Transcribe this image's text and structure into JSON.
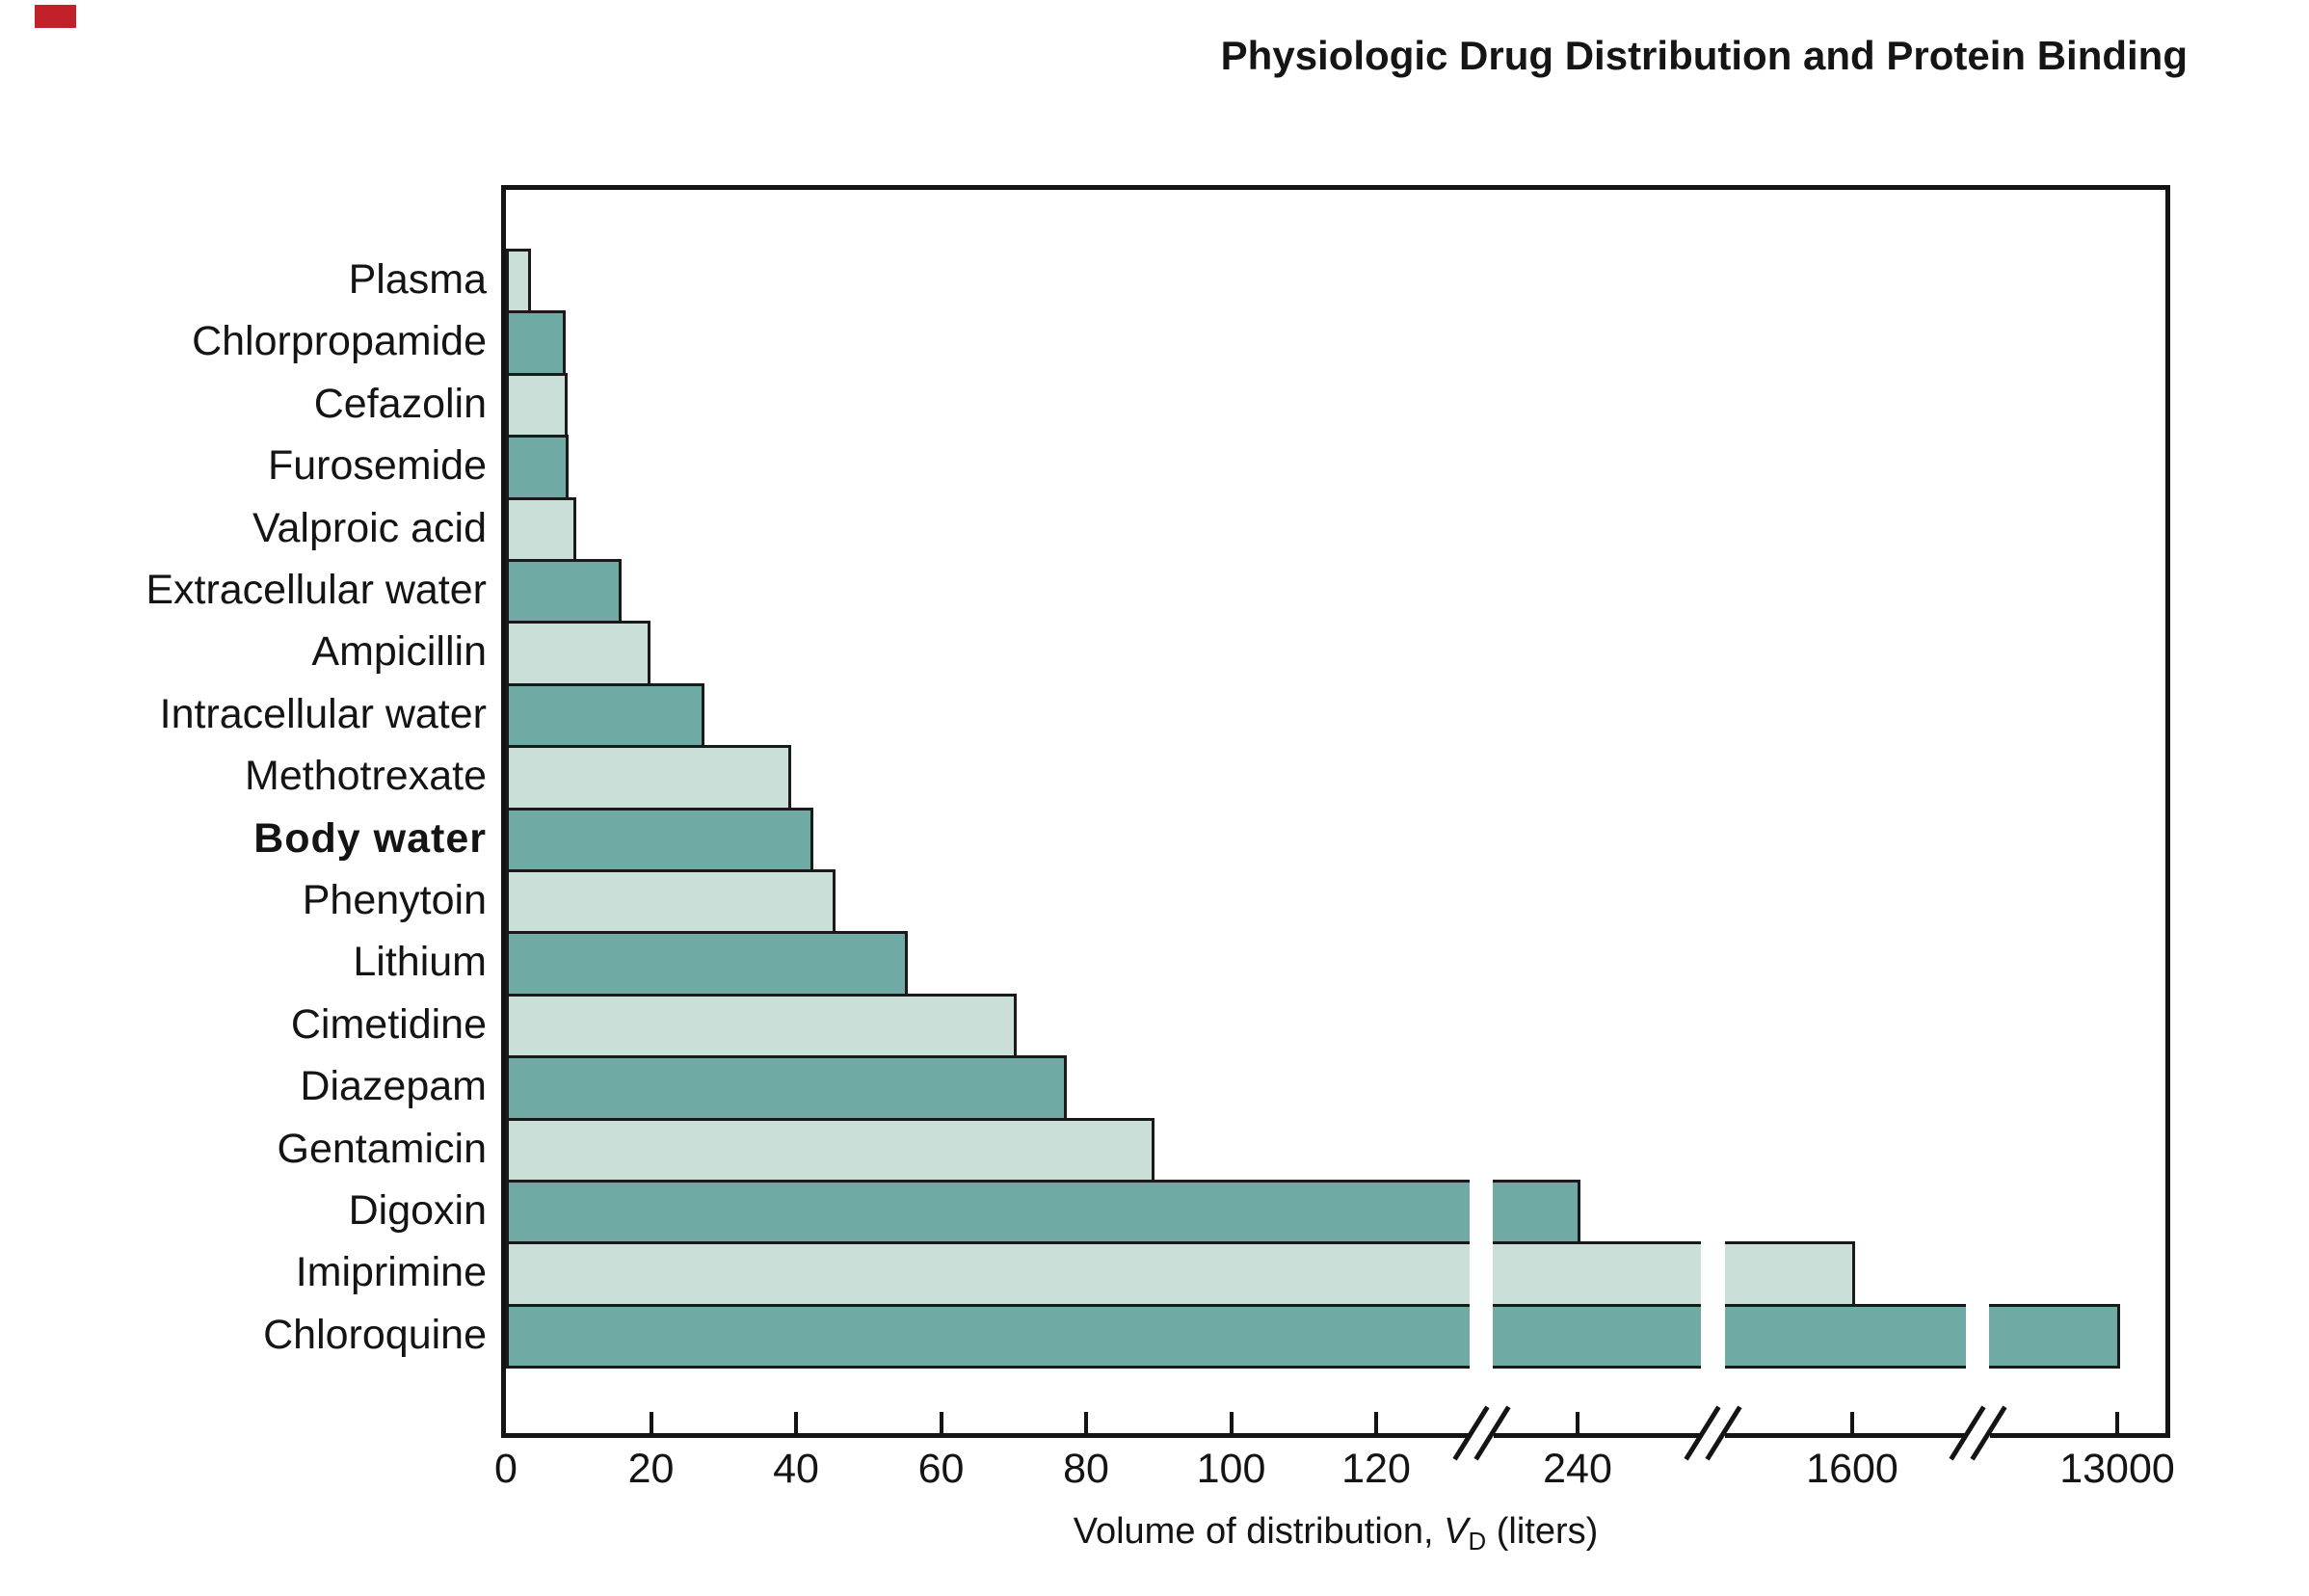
{
  "title": "Physiologic Drug Distribution and Protein Binding",
  "corner_mark_color": "#c2202b",
  "chart_data": {
    "type": "bar",
    "orientation": "horizontal",
    "title": "Physiologic Drug Distribution and Protein Binding",
    "xlabel": "Volume of distribution, VD (liters)",
    "xlabel_parts": {
      "prefix": "Volume of distribution, ",
      "var": "V",
      "sub": "D",
      "suffix": " (liters)"
    },
    "units": "liters",
    "x_ticks": [
      0,
      20,
      40,
      60,
      80,
      100,
      120,
      240,
      1600,
      13000
    ],
    "x_axis_breaks": [
      [
        120,
        240
      ],
      [
        240,
        1600
      ],
      [
        1600,
        13000
      ]
    ],
    "grid": "off",
    "legend": "none",
    "categories": [
      "Plasma",
      "Chlorpropamide",
      "Cefazolin",
      "Furosemide",
      "Valproic acid",
      "Extracellular water",
      "Ampicillin",
      "Intracellular water",
      "Methotrexate",
      "Body water",
      "Phenytoin",
      "Lithium",
      "Cimetidine",
      "Diazepam",
      "Gentamicin",
      "Digoxin",
      "Imiprimine",
      "Chloroquine"
    ],
    "values": [
      3,
      7.8,
      8.1,
      8.3,
      9.3,
      15.5,
      19.5,
      27,
      39,
      42,
      45,
      55,
      70,
      77,
      89,
      240,
      1600,
      13000
    ],
    "bold_categories": [
      "Body water"
    ],
    "shade_pattern": [
      "light",
      "dark",
      "light",
      "dark",
      "light",
      "dark",
      "light",
      "dark",
      "light",
      "dark",
      "light",
      "dark",
      "light",
      "dark",
      "light",
      "dark",
      "light",
      "dark"
    ],
    "colors": {
      "bar_light": "#cadfd8",
      "bar_dark": "#6faaa5",
      "bar_border": "#1a1a1a",
      "axis": "#141414",
      "text": "#141414"
    }
  }
}
